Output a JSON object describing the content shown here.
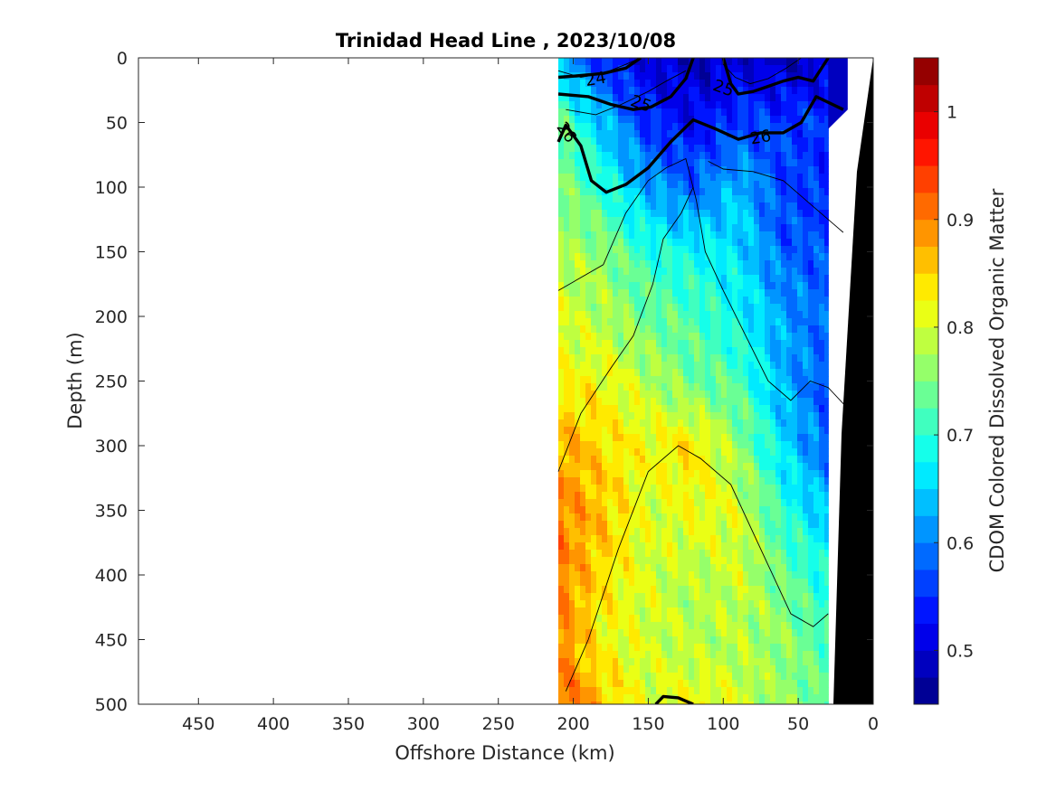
{
  "chart_data": {
    "type": "heatmap",
    "title": "Trinidad Head Line , 2023/10/08",
    "xlabel": "Offshore Distance (km)",
    "ylabel": "Depth (m)",
    "colorbar_label": "CDOM Colored Dissolved Organic Matter",
    "xlim": [
      490,
      0
    ],
    "ylim": [
      0,
      500
    ],
    "x_reversed": true,
    "y_reversed": true,
    "x_ticks": [
      450,
      400,
      350,
      300,
      250,
      200,
      150,
      100,
      50,
      0
    ],
    "y_ticks": [
      0,
      50,
      100,
      150,
      200,
      250,
      300,
      350,
      400,
      450,
      500
    ],
    "colorbar_ticks": [
      0.5,
      0.6,
      0.7,
      0.8,
      0.9,
      1
    ],
    "colorbar_range": [
      0.45,
      1.05
    ],
    "colormap": "jet",
    "data_x_range_km": [
      210,
      30
    ],
    "depth_samples_m": [
      0,
      50,
      100,
      150,
      200,
      250,
      300,
      350,
      400,
      450,
      500
    ],
    "distance_samples_km": [
      210,
      180,
      150,
      120,
      90,
      60,
      30
    ],
    "cdom_grid": [
      [
        0.62,
        0.55,
        0.5,
        0.48,
        0.5,
        0.48,
        0.5
      ],
      [
        0.74,
        0.64,
        0.55,
        0.52,
        0.56,
        0.56,
        0.55
      ],
      [
        0.76,
        0.7,
        0.62,
        0.58,
        0.64,
        0.56,
        0.55
      ],
      [
        0.78,
        0.76,
        0.7,
        0.68,
        0.66,
        0.58,
        0.57
      ],
      [
        0.8,
        0.78,
        0.74,
        0.72,
        0.68,
        0.62,
        0.58
      ],
      [
        0.82,
        0.82,
        0.78,
        0.74,
        0.72,
        0.63,
        0.57
      ],
      [
        0.88,
        0.84,
        0.82,
        0.84,
        0.76,
        0.66,
        0.58
      ],
      [
        0.9,
        0.86,
        0.8,
        0.82,
        0.8,
        0.7,
        0.64
      ],
      [
        0.9,
        0.84,
        0.8,
        0.78,
        0.8,
        0.74,
        0.68
      ],
      [
        0.9,
        0.82,
        0.8,
        0.78,
        0.78,
        0.76,
        0.72
      ],
      [
        0.92,
        0.86,
        0.8,
        0.82,
        0.8,
        0.76,
        0.74
      ]
    ],
    "contour_labels": [
      "24",
      "25",
      "25",
      "26",
      "26"
    ],
    "seafloor_color": "#000000"
  }
}
